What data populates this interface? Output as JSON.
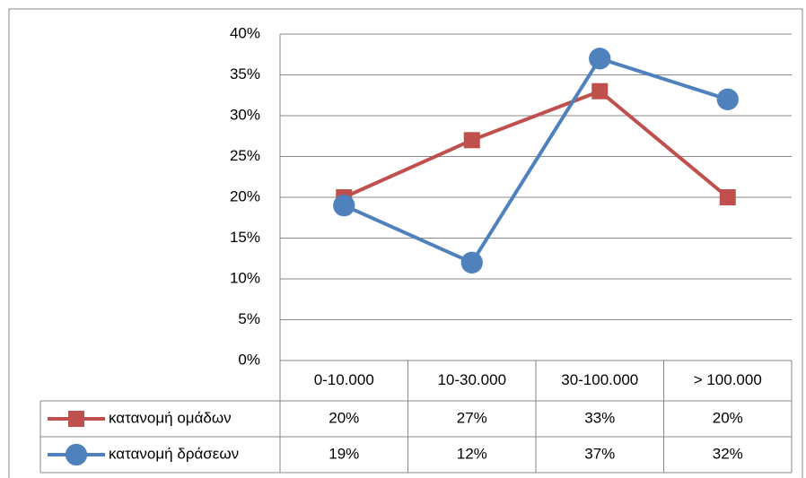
{
  "chart_data": {
    "type": "line",
    "categories": [
      "0-10.000",
      "10-30.000",
      "30-100.000",
      "> 100.000"
    ],
    "series": [
      {
        "name": "κατανομή ομάδων",
        "color": "#c0504d",
        "marker": "square",
        "values": [
          20,
          27,
          33,
          20
        ],
        "value_labels": [
          "20%",
          "27%",
          "33%",
          "20%"
        ]
      },
      {
        "name": "κατανομή δράσεων",
        "color": "#4f81bd",
        "marker": "circle",
        "values": [
          19,
          12,
          37,
          32
        ],
        "value_labels": [
          "19%",
          "12%",
          "37%",
          "32%"
        ]
      }
    ],
    "ylim": [
      0,
      40
    ],
    "yticks": [
      {
        "value": 0,
        "label": "0%"
      },
      {
        "value": 5,
        "label": "5%"
      },
      {
        "value": 10,
        "label": "10%"
      },
      {
        "value": 15,
        "label": "15%"
      },
      {
        "value": 20,
        "label": "20%"
      },
      {
        "value": 25,
        "label": "25%"
      },
      {
        "value": 30,
        "label": "30%"
      },
      {
        "value": 35,
        "label": "35%"
      },
      {
        "value": 40,
        "label": "40%"
      }
    ],
    "grid": true
  }
}
